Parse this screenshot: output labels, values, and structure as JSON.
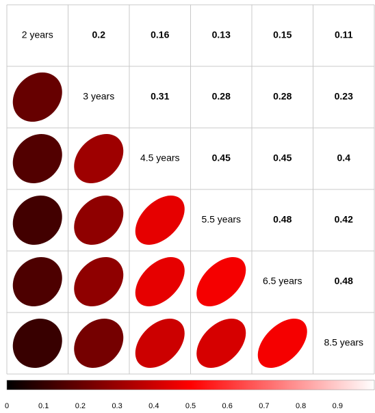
{
  "chart_data": {
    "type": "correlogram",
    "labels": [
      "2 years",
      "3 years",
      "4.5 years",
      "5.5 years",
      "6.5 years",
      "8.5 years"
    ],
    "values": [
      [
        0.2,
        0.16,
        0.13,
        0.15,
        0.11
      ],
      [
        0.31,
        0.28,
        0.28,
        0.23
      ],
      [
        0.45,
        0.45,
        0.4
      ],
      [
        0.48,
        0.42
      ],
      [
        0.48
      ]
    ],
    "colormap": [
      "#000000",
      "#ff0000",
      "#ffffff"
    ],
    "xlim": [
      0,
      1
    ],
    "xticks": [
      0,
      0.1,
      0.2,
      0.3,
      0.4,
      0.5,
      0.6,
      0.7,
      0.8,
      0.9
    ]
  }
}
